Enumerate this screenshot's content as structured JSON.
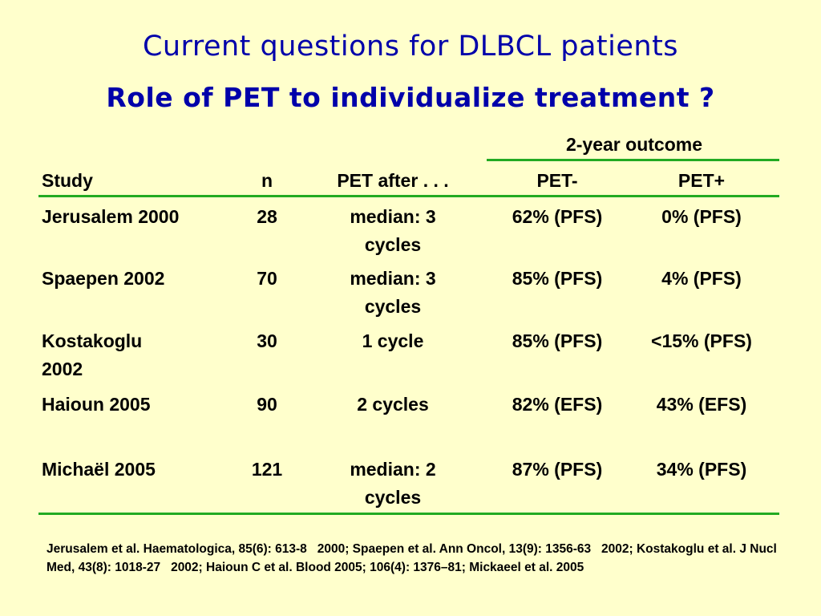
{
  "slide": {
    "title": "Current questions for DLBCL patients",
    "subtitle": "Role of PET to individualize treatment ?"
  },
  "colors": {
    "background": "#FFFFCC",
    "title": "#0000AA",
    "rule": "#22AA22",
    "text": "#000000"
  },
  "table": {
    "group_header": "2-year outcome",
    "headers": [
      "Study",
      "n",
      "PET after . . .",
      "PET-",
      "PET+"
    ],
    "rows": [
      [
        "Jerusalem 2000",
        "28",
        "median: 3 cycles",
        "62% (PFS)",
        "0% (PFS)"
      ],
      [
        "Spaepen 2002",
        "70",
        "median: 3 cycles",
        "85% (PFS)",
        "4% (PFS)"
      ],
      [
        "Kostakoglu 2002",
        "30",
        "1 cycle",
        "85% (PFS)",
        "<15% (PFS)"
      ],
      [
        "Haioun 2005",
        "90",
        "2 cycles",
        "82% (EFS)",
        "43% (EFS)"
      ],
      [
        "Michaël 2005",
        "121",
        "median: 2 cycles",
        "87% (PFS)",
        "34% (PFS)"
      ]
    ]
  },
  "references": "Jerusalem et al. Haematologica, 85(6): 613-8   2000; Spaepen et al. Ann Oncol, 13(9): 1356-63   2002; Kostakoglu et al. J Nucl Med, 43(8): 1018-27   2002; Haioun C et al. Blood 2005; 106(4): 1376–81; Mickaeel et al. 2005"
}
